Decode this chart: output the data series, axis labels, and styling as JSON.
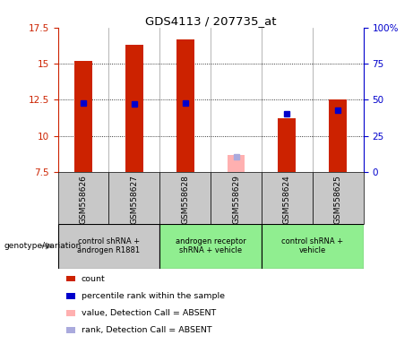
{
  "title": "GDS4113 / 207735_at",
  "samples": [
    "GSM558626",
    "GSM558627",
    "GSM558628",
    "GSM558629",
    "GSM558624",
    "GSM558625"
  ],
  "count_values": [
    15.2,
    16.3,
    16.7,
    null,
    11.2,
    12.5
  ],
  "percentile_values": [
    48,
    47,
    48,
    null,
    40,
    43
  ],
  "count_absent": [
    null,
    null,
    null,
    8.7,
    null,
    null
  ],
  "percentile_absent": [
    null,
    null,
    null,
    10.8,
    null,
    null
  ],
  "ylim_left": [
    7.5,
    17.5
  ],
  "ylim_right": [
    0,
    100
  ],
  "yticks_left": [
    7.5,
    10.0,
    12.5,
    15.0,
    17.5
  ],
  "ytick_labels_left": [
    "7.5",
    "10",
    "12.5",
    "15",
    "17.5"
  ],
  "yticks_right": [
    0,
    25,
    50,
    75,
    100
  ],
  "ytick_labels_right": [
    "0",
    "25",
    "50",
    "75",
    "100%"
  ],
  "groups": [
    {
      "label": "control shRNA +\nandrogen R1881",
      "samples": [
        0,
        1
      ],
      "color": "#c8c8c8"
    },
    {
      "label": "androgen receptor\nshRNA + vehicle",
      "samples": [
        2,
        3
      ],
      "color": "#90ee90"
    },
    {
      "label": "control shRNA +\nvehicle",
      "samples": [
        4,
        5
      ],
      "color": "#90ee90"
    }
  ],
  "bar_color_red": "#cc2200",
  "bar_color_pink": "#ffb0b0",
  "dot_color_blue": "#0000cc",
  "dot_color_light_blue": "#aaaadd",
  "bar_width": 0.35,
  "legend_items": [
    {
      "color": "#cc2200",
      "label": "count"
    },
    {
      "color": "#0000cc",
      "label": "percentile rank within the sample"
    },
    {
      "color": "#ffb0b0",
      "label": "value, Detection Call = ABSENT"
    },
    {
      "color": "#aaaadd",
      "label": "rank, Detection Call = ABSENT"
    }
  ],
  "ylabel_left_color": "#cc2200",
  "ylabel_right_color": "#0000cc",
  "sample_panel_color": "#c8c8c8",
  "genotype_label": "genotype/variation"
}
